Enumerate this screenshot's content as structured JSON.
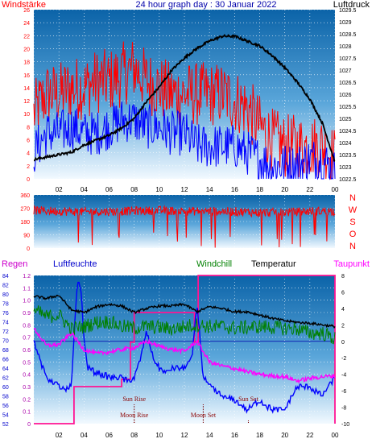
{
  "colors": {
    "wind": "#ff0000",
    "gust": "#0000ff",
    "pressure": "#000000",
    "direction": "#ff0000",
    "windchill": "#008000",
    "temperature": "#000000",
    "dewpoint": "#ff00ff",
    "humidity": "#0000ff",
    "rain": "#ff1493",
    "left_axis": "#ff0000",
    "right_axis": "#000000"
  },
  "chart_data": [
    {
      "type": "line",
      "title": "24 hour graph day : 30 Januar 2022",
      "left_label": "Windstärke",
      "right_label": "Luftdruck",
      "x_ticks": [
        "02",
        "04",
        "06",
        "08",
        "10",
        "12",
        "14",
        "16",
        "18",
        "20",
        "22",
        "00"
      ],
      "y_left_ticks": [
        "0",
        "2",
        "4",
        "6",
        "8",
        "10",
        "12",
        "14",
        "16",
        "18",
        "20",
        "22",
        "24",
        "26"
      ],
      "y_left_range": [
        0,
        26
      ],
      "y_right_ticks": [
        "1022.5",
        "1023",
        "1023.5",
        "1024",
        "1024.5",
        "1025",
        "1025.5",
        "1026",
        "1026.5",
        "1027",
        "1027.5",
        "1028",
        "1028.5",
        "1029",
        "1029.5"
      ],
      "y_right_range": [
        1022.5,
        1029.5
      ],
      "x_range_hours": [
        0,
        24
      ],
      "series": [
        {
          "name": "",
          "axis": "left",
          "color_key": "wind",
          "x": [
            0,
            1,
            2,
            3,
            4,
            5,
            6,
            7,
            8,
            9,
            10,
            11,
            12,
            13,
            14,
            15,
            16,
            17,
            18,
            19,
            20,
            21,
            22,
            23,
            24
          ],
          "y": [
            10,
            13,
            13,
            14,
            14,
            15,
            15,
            16,
            17,
            15,
            14,
            13,
            13,
            13,
            13,
            13,
            12,
            11,
            8,
            6,
            5,
            5,
            5,
            5,
            3
          ]
        },
        {
          "name": "",
          "axis": "left",
          "color_key": "gust",
          "x": [
            0,
            1,
            2,
            3,
            4,
            5,
            6,
            7,
            8,
            9,
            10,
            11,
            12,
            13,
            14,
            15,
            16,
            17,
            18,
            19,
            20,
            21,
            22,
            23,
            24
          ],
          "y": [
            4,
            7,
            7,
            8,
            7,
            7,
            8,
            9,
            9,
            8,
            8,
            7,
            7,
            5,
            5,
            5,
            5,
            4,
            3,
            2,
            2,
            2,
            3,
            3,
            1
          ]
        },
        {
          "name": "",
          "axis": "right",
          "color_key": "pressure",
          "x": [
            0,
            1,
            2,
            3,
            4,
            5,
            6,
            7,
            8,
            9,
            10,
            11,
            12,
            13,
            14,
            15,
            16,
            17,
            18,
            19,
            20,
            21,
            22,
            23,
            24
          ],
          "y": [
            1023.3,
            1023.4,
            1023.5,
            1023.6,
            1023.9,
            1024.1,
            1024.3,
            1024.6,
            1025.0,
            1025.7,
            1026.3,
            1027.0,
            1027.5,
            1027.9,
            1028.2,
            1028.4,
            1028.4,
            1028.2,
            1028.0,
            1027.6,
            1027.1,
            1026.5,
            1025.8,
            1024.8,
            1023.2
          ]
        }
      ]
    },
    {
      "type": "scatter",
      "y_ticks": [
        "360",
        "270",
        "180",
        "90",
        "0"
      ],
      "y_range": [
        0,
        360
      ],
      "right_letters": [
        "N",
        "W",
        "S",
        "O",
        "N"
      ],
      "x_range_hours": [
        0,
        24
      ],
      "series": [
        {
          "name": "",
          "color_key": "direction",
          "x": [
            0,
            2,
            4,
            6,
            8,
            10,
            12,
            14,
            16,
            18,
            20,
            22,
            24
          ],
          "y": [
            255,
            250,
            245,
            248,
            252,
            255,
            250,
            250,
            248,
            240,
            242,
            250,
            250
          ]
        }
      ]
    },
    {
      "type": "line",
      "labels": {
        "rain": "Regen",
        "humidity": "Luftfeuchte",
        "windchill": "Windchill",
        "temperature": "Temperatur",
        "dewpoint": "Taupunkt"
      },
      "x_ticks": [
        "02",
        "04",
        "06",
        "08",
        "10",
        "12",
        "14",
        "16",
        "18",
        "20",
        "22",
        "00"
      ],
      "y_humidity_ticks": [
        "52",
        "54",
        "56",
        "58",
        "60",
        "62",
        "64",
        "66",
        "68",
        "70",
        "72",
        "74",
        "76",
        "78",
        "80",
        "82",
        "84"
      ],
      "y_humidity_range": [
        52,
        84
      ],
      "y_rain_ticks": [
        "0",
        "0.1",
        "0.2",
        "0.3",
        "0.4",
        "0.5",
        "0.6",
        "0.7",
        "0.8",
        "0.9",
        "1.0",
        "1.1",
        "1.2"
      ],
      "y_rain_range": [
        0,
        1.2
      ],
      "y_temp_ticks": [
        "-10",
        "-8",
        "-6",
        "-4",
        "-2",
        "0",
        "2",
        "4",
        "6",
        "8"
      ],
      "y_temp_range": [
        -10,
        8
      ],
      "x_range_hours": [
        0,
        24
      ],
      "series": [
        {
          "name": "",
          "axis": "temp",
          "color_key": "temperature",
          "x": [
            0,
            1,
            2,
            3,
            4,
            5,
            6,
            7,
            8,
            9,
            10,
            11,
            12,
            13,
            14,
            15,
            16,
            17,
            18,
            19,
            20,
            21,
            22,
            23,
            24
          ],
          "y": [
            5.5,
            5.2,
            5.6,
            3.8,
            3.5,
            4.2,
            4.5,
            4.3,
            3.5,
            4.0,
            4.3,
            4.3,
            4.5,
            3.6,
            4.2,
            4.0,
            3.6,
            3.6,
            3.2,
            2.8,
            2.5,
            2.3,
            2.2,
            2.0,
            1.8
          ]
        },
        {
          "name": "",
          "axis": "temp",
          "color_key": "windchill",
          "x": [
            0,
            1,
            2,
            3,
            4,
            5,
            6,
            7,
            8,
            9,
            10,
            11,
            12,
            13,
            14,
            15,
            16,
            17,
            18,
            19,
            20,
            21,
            22,
            23,
            24
          ],
          "y": [
            3.8,
            3.0,
            3.2,
            1.5,
            1.8,
            2.3,
            2.4,
            1.8,
            1.6,
            1.8,
            1.7,
            1.5,
            1.8,
            2.0,
            1.8,
            1.8,
            1.6,
            1.7,
            1.8,
            1.7,
            1.6,
            1.5,
            1.0,
            1.0,
            0.3
          ]
        },
        {
          "name": "",
          "axis": "temp",
          "color_key": "dewpoint",
          "x": [
            0,
            1,
            2,
            3,
            4,
            5,
            6,
            7,
            8,
            9,
            10,
            11,
            12,
            13,
            14,
            15,
            16,
            17,
            18,
            19,
            20,
            21,
            22,
            23,
            24
          ],
          "y": [
            1.6,
            -0.5,
            -0.4,
            1.0,
            -1.0,
            -1.5,
            -1.3,
            -1.0,
            -0.8,
            0.0,
            -0.6,
            -1.0,
            -1.2,
            0.0,
            -2.5,
            -3.0,
            -3.3,
            -3.7,
            -4.0,
            -4.2,
            -4.3,
            -4.8,
            -4.5,
            -4.3,
            -4.2
          ]
        },
        {
          "name": "",
          "axis": "humidity",
          "color_key": "humidity",
          "x": [
            0,
            0.6,
            1,
            1.5,
            2,
            2.5,
            3,
            3.3,
            3.5,
            3.8,
            4,
            4.3,
            5,
            6,
            7,
            7.5,
            8,
            8.5,
            9,
            9.5,
            10,
            10.5,
            11,
            12,
            12.6,
            13,
            13.2,
            13.5,
            14,
            15,
            16,
            17,
            18,
            19,
            20,
            21,
            22,
            23,
            24
          ],
          "y": [
            70,
            65,
            62,
            61,
            60,
            59,
            60,
            76,
            83,
            80,
            70,
            64,
            63,
            62,
            62,
            61,
            62,
            66,
            72,
            66,
            64,
            63,
            64,
            64,
            66,
            78,
            72,
            62,
            60,
            58,
            57,
            55,
            57,
            55,
            55,
            60,
            60,
            58,
            62
          ]
        },
        {
          "name": "",
          "axis": "rain",
          "color_key": "rain",
          "x": [
            0,
            3.2,
            3.2,
            7.0,
            7.0,
            7.7,
            7.7,
            8.0,
            8.0,
            12.8,
            12.8,
            13.1,
            13.1,
            24.0,
            24.0
          ],
          "y": [
            0,
            0,
            0.3,
            0.3,
            0.36,
            0.36,
            0.66,
            0.66,
            0.9,
            0.9,
            0.66,
            0.66,
            1.2,
            1.2,
            0
          ]
        }
      ],
      "annotations": [
        {
          "text": "Sun Rise",
          "hour": 8.0
        },
        {
          "text": "Moon Rise",
          "hour": 8.0
        },
        {
          "text": "Moon Set",
          "hour": 13.5
        },
        {
          "text": "Sun Set",
          "hour": 17.1
        }
      ]
    }
  ]
}
